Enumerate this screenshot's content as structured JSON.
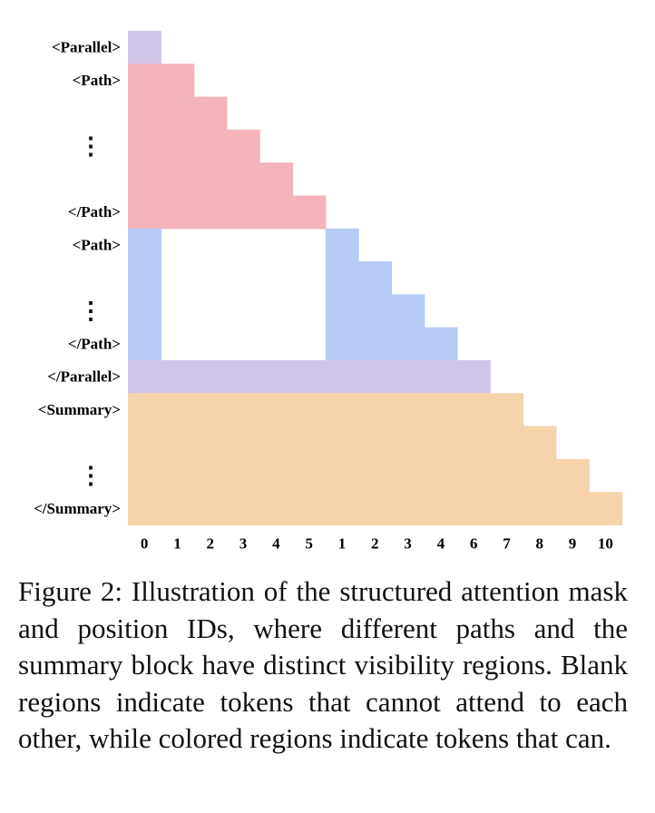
{
  "colors": {
    "parallel": "#d1c5e7",
    "path1": "#f4b4bb",
    "path2": "#b6cbf5",
    "summary": "#f7d3ac"
  },
  "rows": [
    {
      "label": "<Parallel>",
      "group": "parallel",
      "segments": [
        [
          0,
          1
        ]
      ]
    },
    {
      "label": "<Path>",
      "group": "path1",
      "segments": [
        [
          0,
          2
        ]
      ]
    },
    {
      "label": "",
      "group": "path1",
      "segments": [
        [
          0,
          3
        ]
      ]
    },
    {
      "label": "⋮",
      "group": "path1",
      "segments": [
        [
          0,
          4
        ]
      ]
    },
    {
      "label": "",
      "group": "path1",
      "segments": [
        [
          0,
          5
        ]
      ]
    },
    {
      "label": "</Path>",
      "group": "path1",
      "segments": [
        [
          0,
          6
        ]
      ]
    },
    {
      "label": "<Path>",
      "group": "path2",
      "segments": [
        [
          0,
          1
        ],
        [
          6,
          7
        ]
      ]
    },
    {
      "label": "",
      "group": "path2",
      "segments": [
        [
          0,
          1
        ],
        [
          6,
          8
        ]
      ]
    },
    {
      "label": "⋮",
      "group": "path2",
      "segments": [
        [
          0,
          1
        ],
        [
          6,
          9
        ]
      ]
    },
    {
      "label": "</Path>",
      "group": "path2",
      "segments": [
        [
          0,
          1
        ],
        [
          6,
          10
        ]
      ]
    },
    {
      "label": "</Parallel>",
      "group": "parallel",
      "segments": [
        [
          0,
          11
        ]
      ]
    },
    {
      "label": "<Summary>",
      "group": "summary",
      "segments": [
        [
          0,
          12
        ]
      ]
    },
    {
      "label": "",
      "group": "summary",
      "segments": [
        [
          0,
          13
        ]
      ]
    },
    {
      "label": "⋮",
      "group": "summary",
      "segments": [
        [
          0,
          14
        ]
      ]
    },
    {
      "label": "</Summary>",
      "group": "summary",
      "segments": [
        [
          0,
          15
        ]
      ]
    }
  ],
  "columns": [
    "0",
    "1",
    "2",
    "3",
    "4",
    "5",
    "1",
    "2",
    "3",
    "4",
    "6",
    "7",
    "8",
    "9",
    "10"
  ],
  "caption": "Figure 2: Illustration of the structured attention mask and position IDs, where different paths and the summary block have distinct visibility regions. Blank regions indicate tokens that cannot attend to each other, while colored regions indicate tokens that can."
}
